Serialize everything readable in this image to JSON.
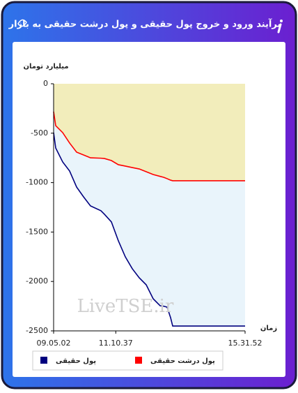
{
  "chart_data": {
    "type": "line",
    "title": "برآیند ورود و خروج پول حقیقی و پول درشت حقیقی به بازار",
    "y_label": "میلیارد تومان",
    "x_label": "زمان",
    "watermark": "LiveTSE.ir",
    "x": [
      9.084,
      9.154,
      9.389,
      9.623,
      9.858,
      10.092,
      10.326,
      10.678,
      10.795,
      11.03,
      11.264,
      11.498,
      11.733,
      11.967,
      12.202,
      12.436,
      12.671,
      12.788,
      12.905,
      13.022,
      13.093,
      13.374,
      15.531
    ],
    "series": [
      {
        "name": "پول حقیقی",
        "color": "#00007f",
        "values": [
          -494,
          -650,
          -791,
          -883,
          -1045,
          -1144,
          -1236,
          -1285,
          -1320,
          -1398,
          -1589,
          -1751,
          -1871,
          -1963,
          -2034,
          -2175,
          -2246,
          -2250,
          -2260,
          -2366,
          -2451,
          -2451,
          -2451
        ]
      },
      {
        "name": "پول درشت حقیقی",
        "color": "#ff0000",
        "values": [
          -282,
          -424,
          -494,
          -600,
          -692,
          -720,
          -749,
          -753,
          -756,
          -777,
          -819,
          -833,
          -848,
          -862,
          -890,
          -918,
          -937,
          -946,
          -960,
          -975,
          -981,
          -981,
          -981
        ]
      }
    ],
    "xlim": [
      9.084,
      15.531
    ],
    "xticks": [
      {
        "value": 9.084,
        "label": "09.05.02"
      },
      {
        "value": 11.177,
        "label": "11.10.37"
      },
      {
        "value": 15.531,
        "label": "15.31.52"
      }
    ],
    "ylim": [
      -2500,
      0
    ],
    "yticks": [
      0,
      -500,
      -1000,
      -1500,
      -2000,
      -2500
    ],
    "grid": false,
    "legend": "bottom"
  }
}
